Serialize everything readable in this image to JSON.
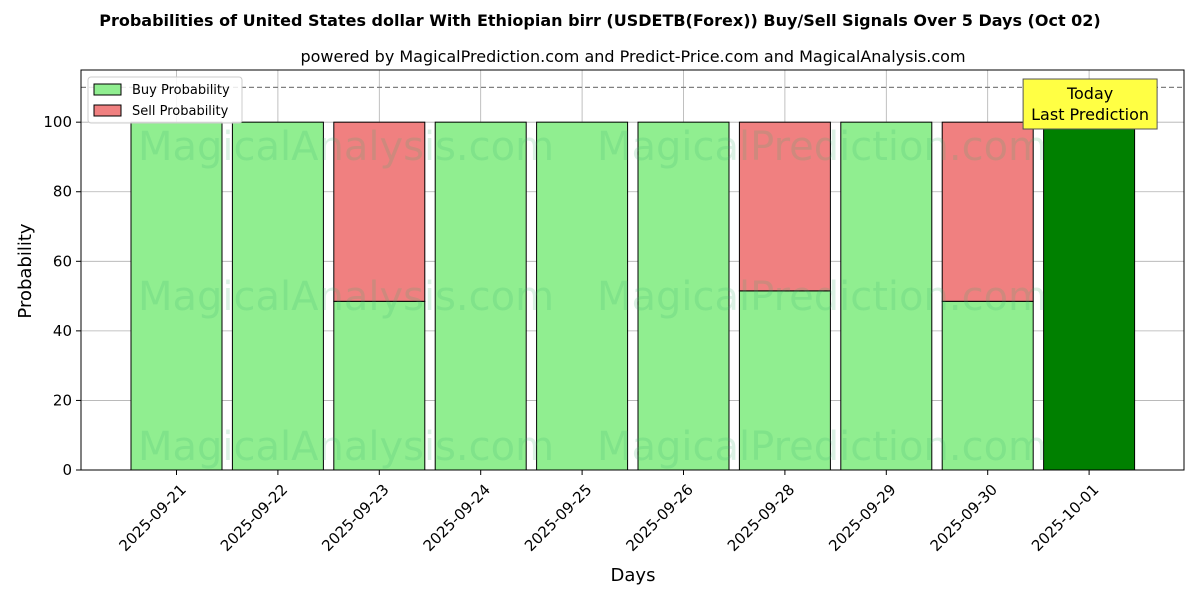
{
  "chart_data": {
    "type": "bar",
    "stacked": true,
    "title": "Probabilities of United States dollar With Ethiopian birr (USDETB(Forex)) Buy/Sell Signals Over 5 Days (Oct 02)",
    "subtitle": "powered by MagicalPrediction.com and Predict-Price.com and MagicalAnalysis.com",
    "xlabel": "Days",
    "ylabel": "Probability",
    "ylim": [
      0,
      115
    ],
    "yticks": [
      0,
      20,
      40,
      60,
      80,
      100
    ],
    "grid": true,
    "legend_position": "top-left",
    "categories": [
      "2025-09-21",
      "2025-09-22",
      "2025-09-23",
      "2025-09-24",
      "2025-09-25",
      "2025-09-26",
      "2025-09-28",
      "2025-09-29",
      "2025-09-30",
      "2025-10-01"
    ],
    "series": [
      {
        "name": "Buy Probability",
        "color": "#90ee90",
        "values": [
          100,
          100,
          48.5,
          100,
          100,
          100,
          51.5,
          100,
          48.5,
          100
        ]
      },
      {
        "name": "Sell Probability",
        "color": "#f08080",
        "values": [
          0,
          0,
          51.5,
          0,
          0,
          0,
          48.5,
          0,
          51.5,
          0
        ]
      }
    ],
    "highlight": {
      "index": 9,
      "color": "#008000"
    },
    "reference_line": {
      "y": 110,
      "style": "dashed",
      "color": "#808080"
    },
    "annotation": {
      "lines": [
        "Today",
        "Last Prediction"
      ],
      "category_index": 9,
      "background": "#ffff44"
    },
    "watermarks": [
      "MagicalAnalysis.com",
      "MagicalPrediction.com"
    ]
  }
}
